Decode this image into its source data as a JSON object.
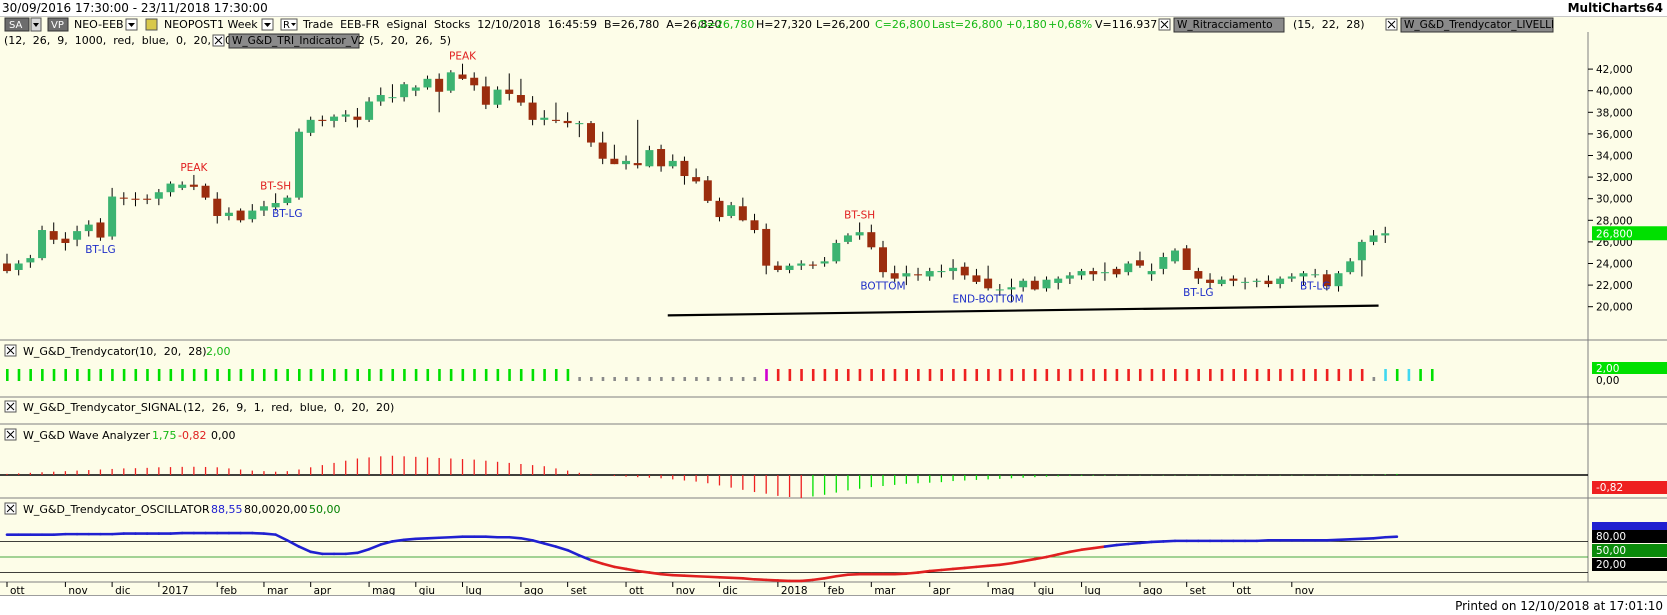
{
  "window": {
    "date_range": "30/09/2016 17:30:00 - 23/11/2018 17:30:00",
    "app_name": "MultiCharts64",
    "printed": "Printed on 12/10/2018 at 17:01:10"
  },
  "toolbar": {
    "sa_label": "SA",
    "vp_label": "VP",
    "symbol": "NEO-EEB",
    "description": "NEOPOST",
    "interval": "1 Week",
    "r_label": "R",
    "info": "Trade  EEB-FR  eSignal  Stocks  12/10/2018  16:45:59  B=26,780  A=26,820",
    "open": "O=26,780",
    "high": "H=27,320",
    "low": "L=26,200",
    "close": "C=26,800",
    "last": "Last=26,800",
    "change": "+0,180",
    "change_pct": "+0,68%",
    "volume": "V=116.937",
    "study_ritracciamento": "W_Ritracciamento",
    "study_ritracciamento_params": "(15,  22,  28)",
    "study_livelli": "W_G&D_Trendycator_LIVELLI",
    "livelli_params": "(12,  26,  9,  1000,  red,  blue,  0,  20,  20)",
    "study_tri": "W_G&D_TRI_Indicator_V2",
    "tri_params": "(5,  20,  26,  5)"
  },
  "colors": {
    "background": "#fdfde8",
    "up_candle": "#3cb371",
    "down_candle": "#9b2d0e",
    "peak_label": "#e02020",
    "bottom_label": "#1f2fc8",
    "trend_up": "#00e000",
    "trend_flat": "#8a8a8a",
    "trend_down": "#ee2020",
    "osc_up": "#2020d0",
    "osc_down": "#e02020",
    "panel_border": "#7f7f7f"
  },
  "price_axis": {
    "ticks": [
      "42,000",
      "40,000",
      "38,000",
      "36,000",
      "34,000",
      "32,000",
      "30,000",
      "28,000",
      "26,000",
      "24,000",
      "22,000",
      "20,000"
    ],
    "last_price": "26,800"
  },
  "chart_data": {
    "type": "candlestick",
    "symbol": "NEO-EEB",
    "x_axis": [
      "ott",
      "nov",
      "dic",
      "2017",
      "feb",
      "mar",
      "apr",
      "mag",
      "giu",
      "lug",
      "ago",
      "set",
      "ott",
      "nov",
      "dic",
      "2018",
      "feb",
      "mar",
      "apr",
      "mag",
      "giu",
      "lug",
      "ago",
      "set",
      "ott",
      "nov"
    ],
    "ylim": [
      19,
      43
    ],
    "ohlc": [
      [
        24.0,
        24.9,
        23.1,
        23.3
      ],
      [
        23.4,
        24.3,
        22.9,
        24.0
      ],
      [
        24.1,
        24.8,
        23.6,
        24.5
      ],
      [
        24.5,
        27.5,
        24.3,
        27.1
      ],
      [
        27.0,
        27.8,
        25.8,
        26.2
      ],
      [
        26.3,
        26.9,
        25.2,
        25.9
      ],
      [
        26.2,
        27.5,
        25.6,
        27.0
      ],
      [
        27.0,
        28.0,
        26.5,
        27.6
      ],
      [
        27.8,
        28.2,
        26.1,
        26.4
      ],
      [
        26.5,
        31.0,
        26.2,
        30.2
      ],
      [
        30.1,
        30.6,
        29.4,
        30.0
      ],
      [
        30.0,
        30.6,
        29.3,
        29.9
      ],
      [
        30.0,
        30.4,
        29.5,
        29.9
      ],
      [
        30.0,
        30.9,
        29.4,
        30.6
      ],
      [
        30.6,
        31.6,
        30.2,
        31.4
      ],
      [
        31.0,
        31.6,
        30.8,
        31.3
      ],
      [
        31.3,
        32.2,
        30.8,
        31.1
      ],
      [
        31.2,
        31.4,
        29.9,
        30.1
      ],
      [
        30.0,
        30.6,
        27.7,
        28.4
      ],
      [
        28.4,
        29.2,
        28.0,
        28.7
      ],
      [
        28.9,
        29.1,
        27.8,
        28.0
      ],
      [
        28.1,
        29.5,
        27.8,
        28.9
      ],
      [
        28.9,
        29.8,
        28.4,
        29.3
      ],
      [
        29.2,
        30.5,
        28.9,
        29.6
      ],
      [
        29.6,
        30.3,
        29.4,
        30.1
      ],
      [
        30.1,
        36.5,
        29.9,
        36.2
      ],
      [
        36.1,
        37.6,
        35.8,
        37.3
      ],
      [
        37.3,
        37.7,
        36.7,
        37.2
      ],
      [
        37.2,
        37.8,
        36.6,
        37.6
      ],
      [
        37.6,
        38.2,
        37.1,
        37.8
      ],
      [
        37.6,
        38.4,
        36.6,
        37.3
      ],
      [
        37.3,
        39.4,
        37.1,
        39.0
      ],
      [
        39.0,
        40.3,
        38.6,
        39.6
      ],
      [
        39.4,
        40.6,
        38.9,
        39.4
      ],
      [
        39.4,
        40.8,
        39.0,
        40.6
      ],
      [
        40.0,
        40.5,
        39.5,
        40.3
      ],
      [
        40.3,
        41.4,
        40.1,
        41.1
      ],
      [
        41.1,
        41.6,
        38.0,
        39.9
      ],
      [
        40.0,
        41.9,
        39.8,
        41.7
      ],
      [
        41.5,
        42.5,
        41.0,
        41.1
      ],
      [
        41.2,
        41.7,
        40.0,
        40.5
      ],
      [
        40.4,
        41.3,
        38.3,
        38.7
      ],
      [
        38.7,
        40.4,
        38.4,
        40.1
      ],
      [
        40.1,
        41.6,
        39.1,
        39.7
      ],
      [
        39.6,
        41.1,
        38.6,
        38.9
      ],
      [
        38.9,
        39.5,
        36.8,
        37.3
      ],
      [
        37.3,
        38.2,
        36.8,
        37.5
      ],
      [
        37.3,
        38.9,
        37.0,
        37.2
      ],
      [
        37.2,
        38.0,
        36.6,
        37.0
      ],
      [
        36.9,
        37.2,
        35.7,
        37.0
      ],
      [
        37.0,
        37.2,
        34.8,
        35.2
      ],
      [
        35.2,
        36.2,
        33.2,
        33.7
      ],
      [
        33.7,
        35.0,
        33.2,
        33.2
      ],
      [
        33.2,
        34.0,
        32.7,
        33.5
      ],
      [
        33.3,
        37.3,
        32.8,
        33.1
      ],
      [
        33.0,
        34.9,
        32.9,
        34.5
      ],
      [
        34.6,
        35.0,
        32.5,
        33.0
      ],
      [
        33.0,
        34.1,
        32.8,
        33.5
      ],
      [
        33.5,
        33.9,
        31.3,
        32.1
      ],
      [
        32.0,
        32.8,
        31.4,
        31.6
      ],
      [
        31.7,
        32.1,
        29.6,
        29.8
      ],
      [
        29.8,
        30.1,
        27.9,
        28.3
      ],
      [
        28.4,
        29.7,
        28.2,
        29.4
      ],
      [
        29.3,
        30.1,
        27.9,
        28.0
      ],
      [
        28.0,
        28.6,
        26.8,
        27.1
      ],
      [
        27.2,
        27.7,
        23.0,
        23.8
      ],
      [
        23.8,
        24.2,
        23.2,
        23.4
      ],
      [
        23.4,
        24.0,
        23.1,
        23.8
      ],
      [
        23.8,
        24.3,
        23.4,
        24.0
      ],
      [
        23.9,
        24.2,
        23.5,
        23.8
      ],
      [
        24.0,
        24.6,
        23.7,
        24.2
      ],
      [
        24.2,
        26.2,
        24.0,
        25.9
      ],
      [
        26.0,
        26.8,
        25.8,
        26.6
      ],
      [
        26.6,
        27.8,
        26.2,
        26.9
      ],
      [
        26.9,
        27.6,
        25.3,
        25.5
      ],
      [
        25.5,
        26.1,
        22.7,
        23.2
      ],
      [
        23.1,
        23.8,
        22.3,
        22.6
      ],
      [
        22.8,
        23.8,
        22.0,
        23.1
      ],
      [
        23.0,
        23.6,
        22.4,
        22.9
      ],
      [
        22.8,
        23.6,
        22.4,
        23.3
      ],
      [
        23.2,
        23.9,
        22.7,
        23.3
      ],
      [
        23.3,
        24.4,
        22.5,
        23.6
      ],
      [
        23.7,
        24.1,
        22.5,
        22.9
      ],
      [
        22.9,
        23.5,
        22.1,
        22.3
      ],
      [
        22.6,
        23.8,
        21.5,
        21.7
      ],
      [
        21.6,
        22.1,
        21.0,
        21.6
      ],
      [
        21.6,
        22.6,
        20.4,
        21.8
      ],
      [
        21.8,
        22.6,
        21.4,
        22.4
      ],
      [
        22.4,
        22.8,
        21.5,
        21.6
      ],
      [
        21.7,
        22.8,
        21.4,
        22.5
      ],
      [
        22.2,
        22.8,
        21.6,
        22.6
      ],
      [
        22.6,
        23.2,
        22.1,
        22.9
      ],
      [
        22.9,
        23.5,
        22.5,
        23.3
      ],
      [
        23.3,
        23.6,
        22.4,
        23.0
      ],
      [
        23.1,
        24.1,
        22.4,
        23.2
      ],
      [
        23.5,
        23.7,
        22.7,
        23.0
      ],
      [
        23.2,
        24.2,
        22.9,
        24.0
      ],
      [
        24.3,
        25.1,
        23.6,
        23.8
      ],
      [
        23.0,
        24.0,
        22.4,
        23.3
      ],
      [
        23.5,
        25.0,
        23.0,
        24.6
      ],
      [
        24.2,
        25.4,
        24.0,
        25.2
      ],
      [
        25.4,
        25.7,
        23.4,
        23.4
      ],
      [
        23.3,
        23.6,
        22.1,
        22.6
      ],
      [
        22.5,
        23.1,
        21.7,
        22.2
      ],
      [
        22.1,
        22.8,
        21.9,
        22.5
      ],
      [
        22.6,
        22.9,
        21.9,
        22.4
      ],
      [
        22.3,
        22.7,
        21.6,
        22.3
      ],
      [
        22.3,
        22.6,
        21.8,
        22.4
      ],
      [
        22.4,
        22.9,
        21.8,
        22.1
      ],
      [
        22.1,
        22.8,
        21.7,
        22.6
      ],
      [
        22.6,
        23.1,
        22.3,
        22.8
      ],
      [
        22.8,
        23.3,
        22.0,
        23.1
      ],
      [
        23.0,
        23.5,
        22.7,
        23.0
      ],
      [
        23.0,
        23.4,
        21.5,
        21.9
      ],
      [
        21.9,
        23.3,
        21.4,
        23.1
      ],
      [
        23.2,
        24.5,
        23.0,
        24.2
      ],
      [
        24.3,
        26.2,
        22.8,
        26.0
      ],
      [
        26.0,
        27.1,
        25.7,
        26.6
      ],
      [
        26.6,
        27.4,
        25.9,
        26.8
      ]
    ],
    "labels": [
      {
        "text": "PEAK",
        "bar": 16,
        "type": "peak"
      },
      {
        "text": "BT-LG",
        "bar": 8,
        "type": "bottom"
      },
      {
        "text": "BT-SH",
        "bar": 23,
        "type": "peak"
      },
      {
        "text": "BT-LG",
        "bar": 24,
        "type": "bottom"
      },
      {
        "text": "PEAK",
        "bar": 39,
        "type": "peak"
      },
      {
        "text": "BT-SH",
        "bar": 73,
        "type": "peak"
      },
      {
        "text": "BOTTOM",
        "bar": 75,
        "type": "bottom"
      },
      {
        "text": "END-BOTTOM",
        "bar": 84,
        "type": "bottom"
      },
      {
        "text": "BT-LG",
        "bar": 102,
        "type": "bottom"
      },
      {
        "text": "BT-LG",
        "bar": 112,
        "type": "bottom"
      }
    ],
    "trend_line": {
      "start_bar": 57,
      "end_bar": 117,
      "start_value": 19.2,
      "end_value": 20.1
    },
    "trendycator": {
      "name": "W_G&D_Trendycator",
      "params": "(10,  20,  28)",
      "value": "2,00",
      "states": "gggggggggggggggggggggggggggggggggggggggggggggggggffffffffffffffffmddddddddddddddddddddddddddddddddddddddddddddddddddrfcgcgg"
    },
    "signal": {
      "name": "W_G&D_Trendycator_SIGNAL",
      "params": "(12,  26,  9,  1,  red,  blue,  0,  20,  20)"
    },
    "wave": {
      "name": "W_G&D Wave Analyzer",
      "v1": "1,75",
      "v2": "-0,82",
      "v3": "0,00",
      "last_label": "-0,82",
      "values": [
        0.1,
        0.15,
        0.2,
        0.25,
        0.3,
        0.35,
        0.4,
        0.45,
        0.5,
        0.55,
        0.6,
        0.62,
        0.65,
        0.7,
        0.72,
        0.74,
        0.75,
        0.73,
        0.7,
        0.6,
        0.5,
        0.4,
        0.35,
        0.3,
        0.35,
        0.5,
        0.7,
        0.9,
        1.1,
        1.3,
        1.5,
        1.6,
        1.7,
        1.75,
        1.7,
        1.65,
        1.6,
        1.55,
        1.5,
        1.45,
        1.4,
        1.3,
        1.2,
        1.1,
        1.0,
        0.9,
        0.8,
        0.6,
        0.4,
        0.2,
        0.1,
        0.0,
        -0.1,
        -0.15,
        -0.2,
        -0.25,
        -0.3,
        -0.4,
        -0.5,
        -0.6,
        -0.75,
        -0.95,
        -1.15,
        -1.35,
        -1.55,
        -1.7,
        -1.9,
        -2.0,
        -2.1,
        -1.95,
        -1.8,
        -1.6,
        -1.4,
        -1.25,
        -1.1,
        -1.0,
        -0.9,
        -0.8,
        -0.75,
        -0.7,
        -0.65,
        -0.55,
        -0.5,
        -0.45,
        -0.4,
        -0.35,
        -0.3,
        -0.25,
        -0.2,
        -0.15,
        -0.12,
        -0.1,
        -0.08,
        -0.06,
        -0.05,
        -0.04,
        -0.03,
        -0.03,
        -0.03,
        -0.03,
        -0.03,
        -0.03,
        -0.03,
        -0.03,
        -0.03,
        -0.03,
        -0.03,
        -0.03,
        -0.03,
        -0.03,
        -0.03,
        -0.03,
        -0.03,
        -0.03,
        -0.03,
        -0.03,
        -0.03,
        -0.03,
        0.05,
        0.1
      ]
    },
    "oscillator": {
      "name": "W_G&D_Trendycator_OSCILLATOR",
      "value": "88,55",
      "level_high": "80,00",
      "level_low": "20,00",
      "level_mid": "50,00",
      "end_label": "20,00",
      "values": [
        93,
        93,
        93,
        93,
        93,
        94,
        94,
        94,
        94,
        94,
        95,
        95,
        95,
        95,
        95,
        96,
        96,
        96,
        96,
        96,
        96,
        96,
        95,
        93,
        82,
        70,
        60,
        56,
        56,
        56,
        58,
        65,
        74,
        80,
        83,
        85,
        86,
        87,
        88,
        89,
        89,
        89,
        88,
        88,
        86,
        82,
        76,
        70,
        63,
        53,
        44,
        37,
        31,
        27,
        23,
        20,
        17,
        15,
        14,
        13,
        12,
        11,
        10,
        9,
        7,
        6,
        5,
        4,
        4,
        6,
        9,
        13,
        16,
        17,
        17,
        17,
        17,
        18,
        20,
        23,
        25,
        27,
        29,
        31,
        33,
        35,
        38,
        42,
        46,
        50,
        55,
        60,
        64,
        67,
        70,
        73,
        75,
        77,
        79,
        80,
        81,
        81,
        81,
        81,
        81,
        81,
        81,
        81,
        82,
        82,
        82,
        82,
        82,
        82,
        83,
        84,
        85,
        86,
        88,
        89
      ],
      "colors": "uuuuuuuuuuuuuuuuuuuuuuuuuuuuuuuuuuuuuuuuuuuuuuuuuudddddddddddddddddddddddddddddddddddddddddddduuuuuuuuuuuuuuuuuuuuuuuuuuu",
      "osc_labels": [
        "80,00",
        "50,00",
        "20,00"
      ]
    }
  }
}
